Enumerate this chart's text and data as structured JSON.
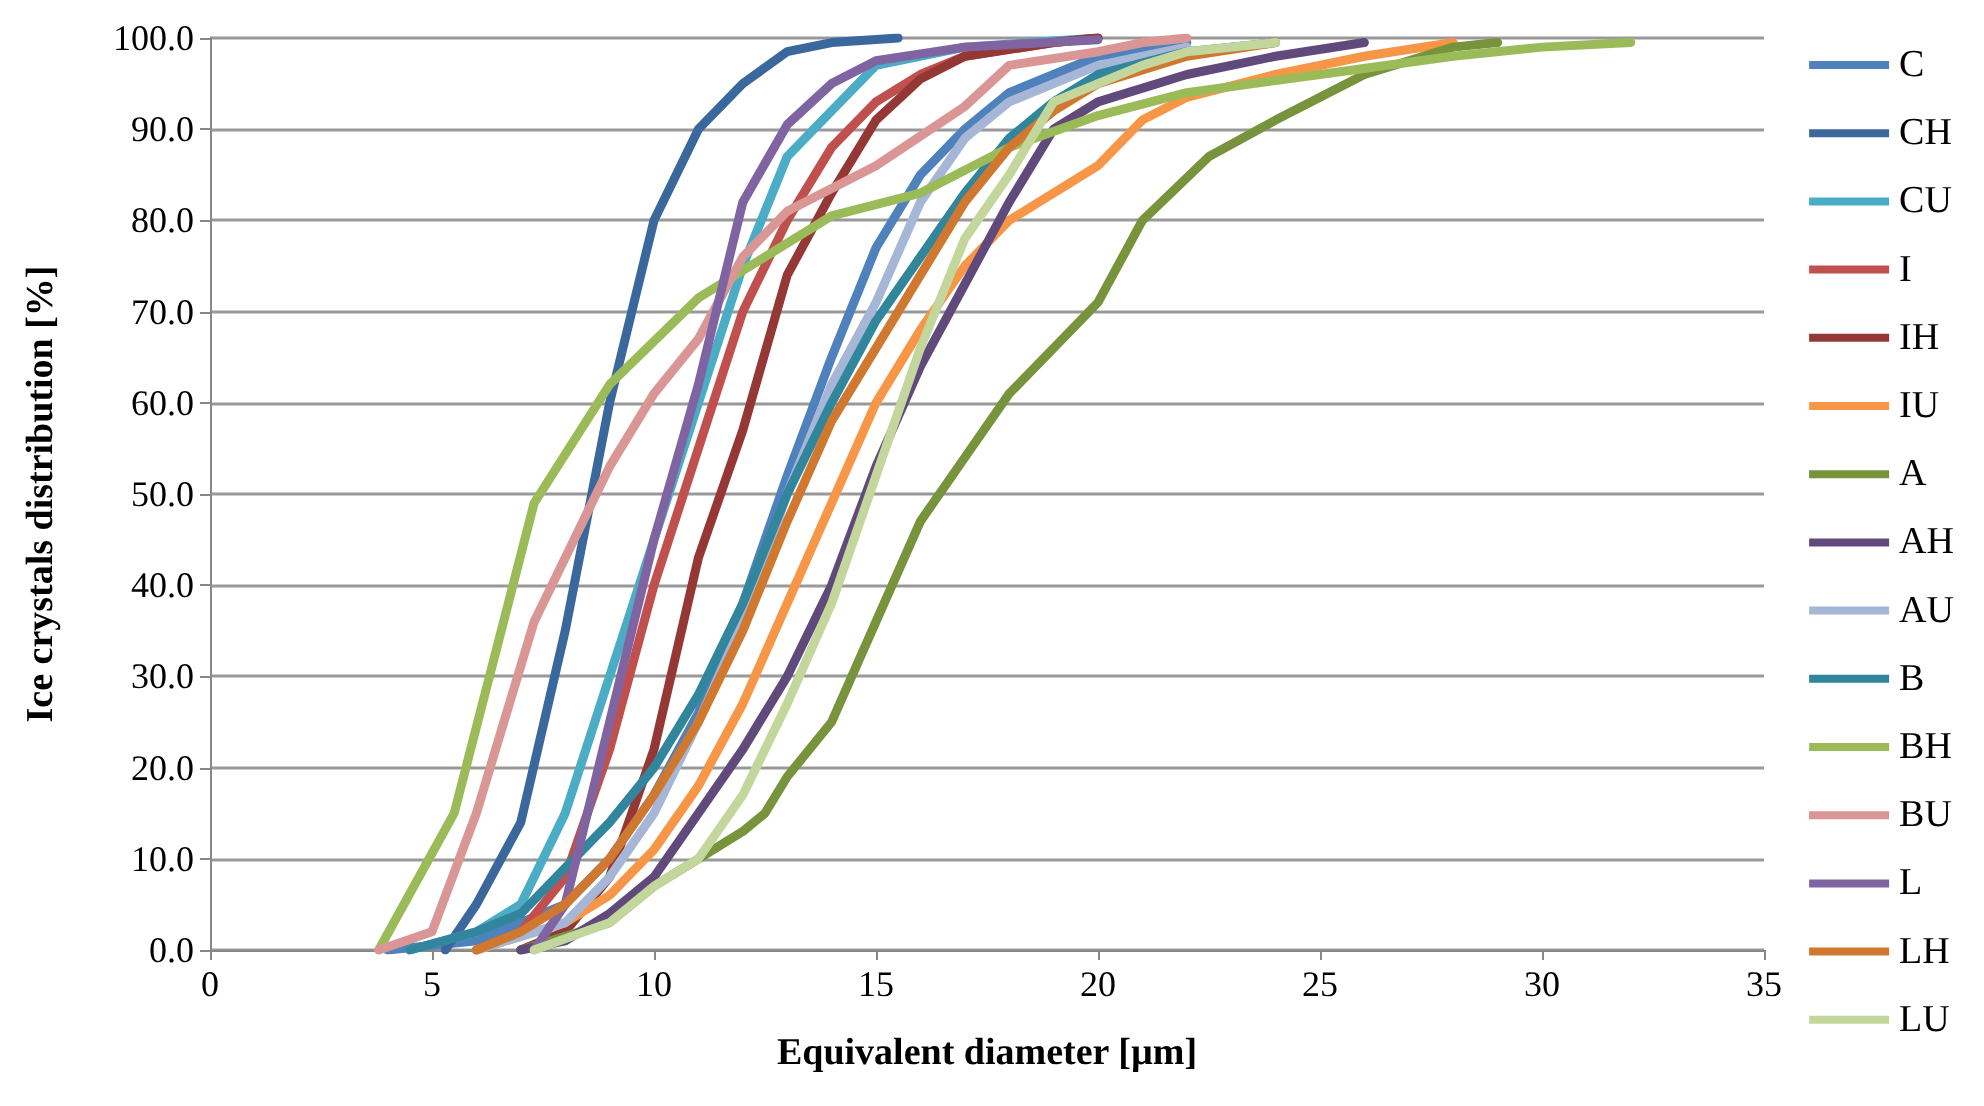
{
  "chart_data": {
    "type": "line",
    "xlabel": "Equivalent diameter [µm]",
    "ylabel": "Ice crystals distribution [%]",
    "xlim": [
      0,
      35
    ],
    "xticks": [
      0,
      5,
      10,
      15,
      20,
      25,
      30,
      35
    ],
    "ylim": [
      0,
      100
    ],
    "yticks": [
      {
        "value": 0,
        "label": "0.0"
      },
      {
        "value": 10,
        "label": "10.0"
      },
      {
        "value": 20,
        "label": "20.0"
      },
      {
        "value": 30,
        "label": "30.0"
      },
      {
        "value": 40,
        "label": "40.0"
      },
      {
        "value": 50,
        "label": "50.0"
      },
      {
        "value": 60,
        "label": "60.0"
      },
      {
        "value": 70,
        "label": "70.0"
      },
      {
        "value": 80,
        "label": "80.0"
      },
      {
        "value": 90,
        "label": "90.0"
      },
      {
        "value": 100,
        "label": "100.0"
      }
    ],
    "grid": "y",
    "legend": "right",
    "marker": "none",
    "line_style": "solid",
    "series": [
      {
        "name": "C",
        "color": "#4f81bd",
        "x": [
          4,
          6,
          8,
          9,
          10,
          11,
          12,
          13,
          14,
          15,
          16,
          17,
          18,
          19,
          20,
          22
        ],
        "values": [
          0,
          1,
          5,
          10,
          17,
          26,
          38,
          52,
          65,
          77,
          85,
          90,
          94,
          96,
          98,
          99.5
        ]
      },
      {
        "name": "CH",
        "color": "#3a679c",
        "x": [
          5.3,
          6,
          7,
          8,
          9,
          10,
          11,
          12,
          13,
          14,
          15.5
        ],
        "values": [
          0,
          5,
          14,
          35,
          60,
          80,
          90,
          95,
          98.5,
          99.5,
          100
        ]
      },
      {
        "name": "CU",
        "color": "#4bacc6",
        "x": [
          4.5,
          6,
          7,
          8,
          9,
          10,
          11,
          12,
          13,
          14,
          15,
          17,
          20
        ],
        "values": [
          0,
          2,
          5,
          15,
          30,
          45,
          60,
          75,
          87,
          92,
          97,
          99,
          100
        ]
      },
      {
        "name": "I",
        "color": "#c0504d",
        "x": [
          6,
          7,
          8,
          9,
          10,
          11,
          12,
          13,
          14,
          15,
          16,
          17,
          19,
          20
        ],
        "values": [
          0,
          2,
          8,
          22,
          40,
          55,
          70,
          80,
          88,
          93,
          96,
          98,
          99.5,
          100
        ]
      },
      {
        "name": "IH",
        "color": "#953735",
        "x": [
          7,
          8,
          9,
          10,
          11,
          12,
          13,
          14,
          15,
          16,
          17,
          19,
          20
        ],
        "values": [
          0,
          2,
          8,
          22,
          43,
          57,
          74,
          83,
          91,
          95.5,
          98,
          99.5,
          100
        ]
      },
      {
        "name": "IU",
        "color": "#f79646",
        "x": [
          6,
          8,
          9,
          10,
          11,
          12,
          13,
          14,
          15,
          16,
          17,
          18,
          20,
          21,
          22,
          24,
          26,
          28
        ],
        "values": [
          0,
          3,
          6,
          11,
          18,
          27,
          38,
          49,
          60,
          68,
          75,
          80,
          86,
          91,
          93.5,
          96,
          98,
          99.5
        ]
      },
      {
        "name": "A",
        "color": "#77933c",
        "x": [
          7,
          9,
          10,
          11,
          12,
          12.5,
          13,
          14,
          15,
          16,
          17,
          18,
          19,
          20,
          21,
          22.5,
          24,
          26,
          28,
          29
        ],
        "values": [
          0,
          3,
          7,
          10,
          13,
          15,
          19,
          25,
          36,
          47,
          54,
          61,
          66,
          71,
          80,
          87,
          91,
          96,
          99,
          99.5
        ]
      },
      {
        "name": "AH",
        "color": "#604a7b",
        "x": [
          7,
          8,
          9,
          10,
          11,
          12,
          13,
          14,
          15,
          16,
          17,
          18,
          19,
          20,
          22,
          24,
          26
        ],
        "values": [
          0,
          1,
          4,
          8,
          15,
          22,
          30,
          40,
          53,
          64,
          73,
          82,
          90,
          93,
          96,
          98,
          99.5
        ]
      },
      {
        "name": "AU",
        "color": "#a5b6d6",
        "x": [
          6,
          8,
          9,
          10,
          11,
          12,
          13,
          14,
          15,
          16,
          17,
          18,
          20,
          22
        ],
        "values": [
          0,
          3,
          8,
          15,
          25,
          36,
          50,
          62,
          71,
          82,
          89,
          93,
          97,
          99
        ]
      },
      {
        "name": "B",
        "color": "#31859c",
        "x": [
          4.5,
          6,
          7,
          8,
          9,
          10,
          11,
          12,
          13,
          14,
          15,
          16,
          17,
          18,
          19,
          20,
          22,
          24
        ],
        "values": [
          0,
          2,
          4,
          9,
          14,
          20,
          28,
          38,
          50,
          60,
          69,
          76,
          83,
          89,
          93,
          96,
          98.5,
          99.5
        ]
      },
      {
        "name": "BH",
        "color": "#9bbb59",
        "x": [
          3.8,
          5.5,
          7.3,
          9,
          11,
          12.5,
          14,
          16,
          18,
          20,
          22,
          25,
          28,
          30,
          32
        ],
        "values": [
          0,
          15,
          49,
          62,
          71.5,
          76,
          80.5,
          83,
          88,
          91.5,
          94,
          96,
          98,
          99,
          99.5
        ]
      },
      {
        "name": "BU",
        "color": "#d99694",
        "x": [
          3.8,
          5,
          6,
          7.3,
          9,
          10,
          11,
          12,
          13,
          15,
          17,
          18,
          20,
          21,
          22
        ],
        "values": [
          0,
          2,
          15,
          36,
          53,
          61,
          67,
          76,
          81,
          86,
          92.5,
          97,
          98.5,
          99.5,
          100
        ]
      },
      {
        "name": "L",
        "color": "#8064a2",
        "x": [
          7.3,
          8,
          9,
          10,
          11,
          12,
          13,
          14,
          15,
          17,
          20
        ],
        "values": [
          0,
          5,
          25,
          45,
          62,
          82,
          90.5,
          95,
          97.5,
          99,
          99.8
        ]
      },
      {
        "name": "LH",
        "color": "#d0782f",
        "x": [
          6,
          7,
          8,
          9,
          10,
          11,
          12,
          13,
          14,
          15,
          16,
          17,
          18,
          19,
          20,
          22,
          24
        ],
        "values": [
          0,
          2,
          5,
          10,
          17,
          25,
          35,
          47,
          58,
          66,
          74,
          82,
          88,
          92,
          95,
          98,
          99.5
        ]
      },
      {
        "name": "LU",
        "color": "#c3d69b",
        "x": [
          7.3,
          9,
          10,
          11,
          12,
          13,
          14,
          15,
          16,
          17,
          18,
          19,
          20,
          21,
          22,
          24
        ],
        "values": [
          0,
          3,
          7,
          10,
          17,
          27,
          38,
          52,
          66,
          78,
          85,
          93,
          95,
          97,
          98.5,
          99.5
        ]
      }
    ]
  }
}
